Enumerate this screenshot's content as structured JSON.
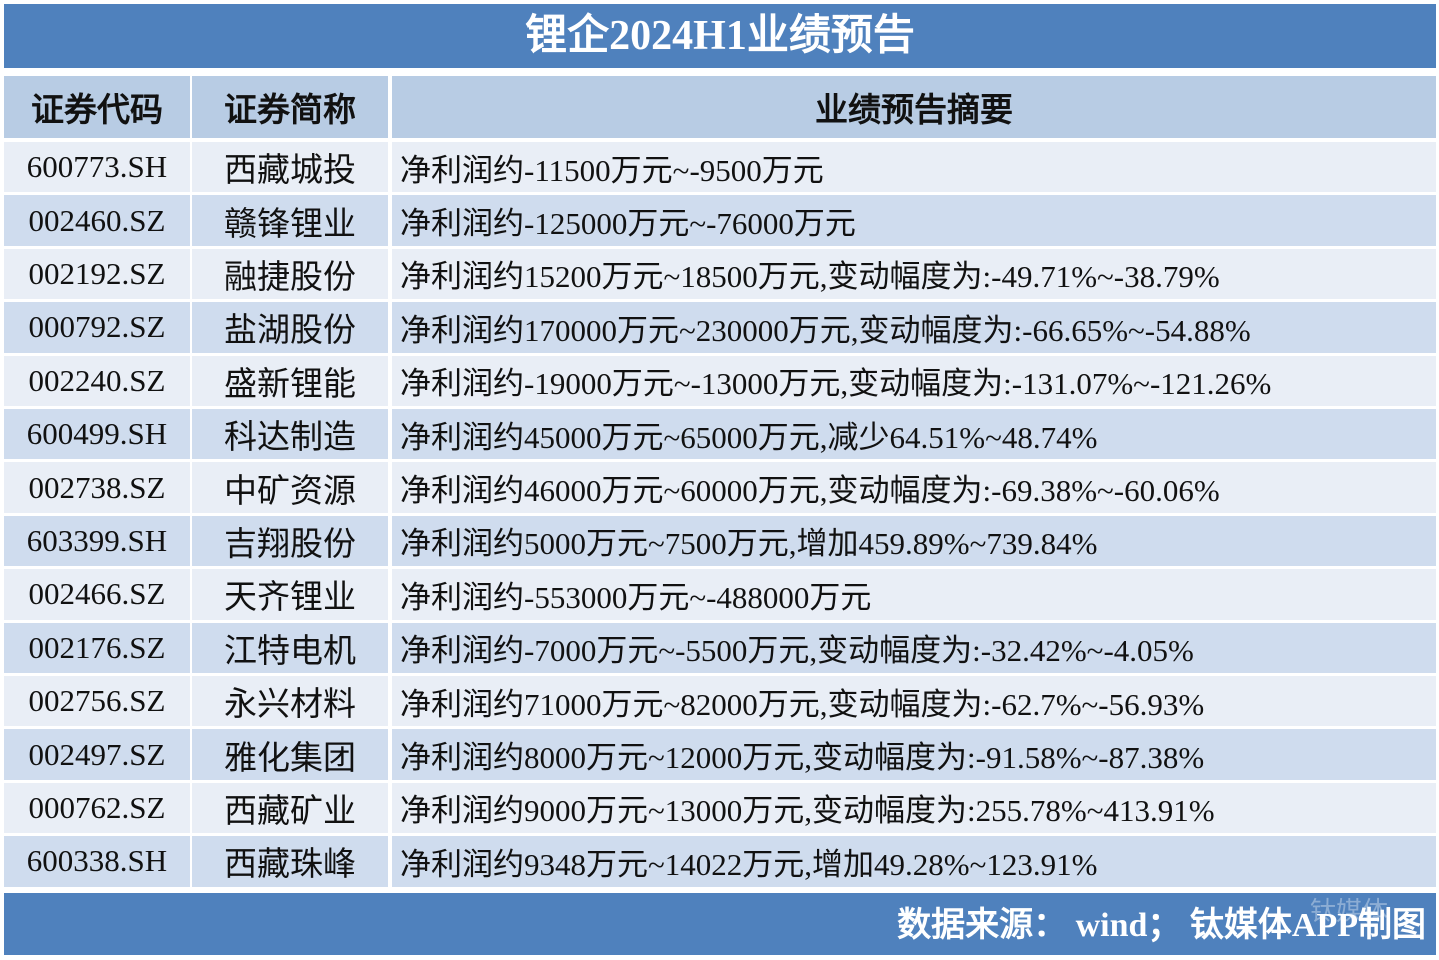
{
  "title": "锂企2024H1业绩预告",
  "table": {
    "header": [
      "证券代码",
      "证券简称",
      "业绩预告摘要"
    ],
    "rows": [
      [
        "600773.SH",
        "西藏城投",
        "净利润约-11500万元~-9500万元"
      ],
      [
        "002460.SZ",
        "赣锋锂业",
        "净利润约-125000万元~-76000万元"
      ],
      [
        "002192.SZ",
        "融捷股份",
        "净利润约15200万元~18500万元,变动幅度为:-49.71%~-38.79%"
      ],
      [
        "000792.SZ",
        "盐湖股份",
        "净利润约170000万元~230000万元,变动幅度为:-66.65%~-54.88%"
      ],
      [
        "002240.SZ",
        "盛新锂能",
        "净利润约-19000万元~-13000万元,变动幅度为:-131.07%~-121.26%"
      ],
      [
        "600499.SH",
        "科达制造",
        "净利润约45000万元~65000万元,减少64.51%~48.74%"
      ],
      [
        "002738.SZ",
        "中矿资源",
        "净利润约46000万元~60000万元,变动幅度为:-69.38%~-60.06%"
      ],
      [
        "603399.SH",
        "吉翔股份",
        "净利润约5000万元~7500万元,增加459.89%~739.84%"
      ],
      [
        "002466.SZ",
        "天齐锂业",
        "净利润约-553000万元~-488000万元"
      ],
      [
        "002176.SZ",
        "江特电机",
        "净利润约-7000万元~-5500万元,变动幅度为:-32.42%~-4.05%"
      ],
      [
        "002756.SZ",
        "永兴材料",
        "净利润约71000万元~82000万元,变动幅度为:-62.7%~-56.93%"
      ],
      [
        "002497.SZ",
        "雅化集团",
        "净利润约8000万元~12000万元,变动幅度为:-91.58%~-87.38%"
      ],
      [
        "000762.SZ",
        "西藏矿业",
        "净利润约9000万元~13000万元,变动幅度为:255.78%~413.91%"
      ],
      [
        "600338.SH",
        "西藏珠峰",
        "净利润约9348万元~14022万元,增加49.28%~123.91%"
      ]
    ]
  },
  "footer": {
    "source": "数据来源： wind； 钛媒体APP制图",
    "watermark": "钛媒体"
  }
}
